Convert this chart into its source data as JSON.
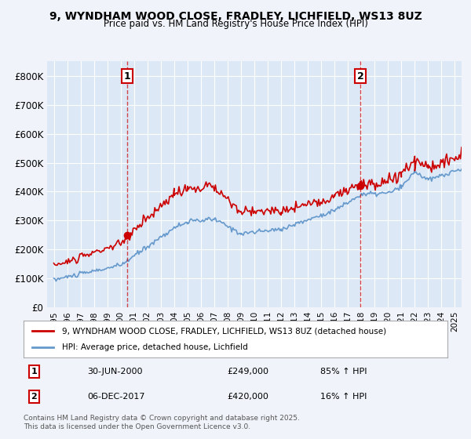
{
  "title": "9, WYNDHAM WOOD CLOSE, FRADLEY, LICHFIELD, WS13 8UZ",
  "subtitle": "Price paid vs. HM Land Registry's House Price Index (HPI)",
  "xlabel": "",
  "ylabel": "",
  "background_color": "#f0f4fa",
  "plot_bg_color": "#dce8f5",
  "red_line_color": "#cc0000",
  "blue_line_color": "#6699cc",
  "sale1_date_x": 2000.5,
  "sale1_price": 249000,
  "sale1_label": "1",
  "sale2_date_x": 2017.92,
  "sale2_price": 420000,
  "sale2_label": "2",
  "vline1_x": 2000.5,
  "vline2_x": 2017.92,
  "ylim_min": 0,
  "ylim_max": 850000,
  "xlim_min": 1994.5,
  "xlim_max": 2025.5,
  "ytick_values": [
    0,
    100000,
    200000,
    300000,
    400000,
    500000,
    600000,
    700000,
    800000
  ],
  "ytick_labels": [
    "£0",
    "£100K",
    "£200K",
    "£300K",
    "£400K",
    "£500K",
    "£600K",
    "£700K",
    "£800K"
  ],
  "xtick_values": [
    1995,
    1996,
    1997,
    1998,
    1999,
    2000,
    2001,
    2002,
    2003,
    2004,
    2005,
    2006,
    2007,
    2008,
    2009,
    2010,
    2011,
    2012,
    2013,
    2014,
    2015,
    2016,
    2017,
    2018,
    2019,
    2020,
    2021,
    2022,
    2023,
    2024,
    2025
  ],
  "legend_label_red": "9, WYNDHAM WOOD CLOSE, FRADLEY, LICHFIELD, WS13 8UZ (detached house)",
  "legend_label_blue": "HPI: Average price, detached house, Lichfield",
  "annotation1_date": "30-JUN-2000",
  "annotation1_price": "£249,000",
  "annotation1_hpi": "85% ↑ HPI",
  "annotation2_date": "06-DEC-2017",
  "annotation2_price": "£420,000",
  "annotation2_hpi": "16% ↑ HPI",
  "footnote": "Contains HM Land Registry data © Crown copyright and database right 2025.\nThis data is licensed under the Open Government Licence v3.0."
}
